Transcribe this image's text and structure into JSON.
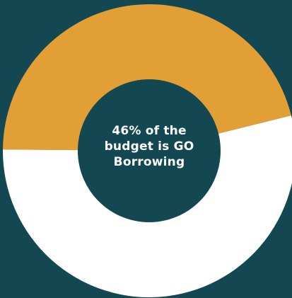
{
  "chart_data": {
    "type": "pie",
    "variant": "donut",
    "slices": [
      {
        "label": "GO Borrowing",
        "value": 46,
        "color": "#e29f35"
      },
      {
        "label": "",
        "value": 54,
        "color": "#ffffff"
      }
    ],
    "center_text": {
      "line1": "46% of the",
      "line2": "budget is GO",
      "line3": "Borrowing"
    }
  },
  "colors": {
    "background": "#134852",
    "hole": "#134852"
  }
}
